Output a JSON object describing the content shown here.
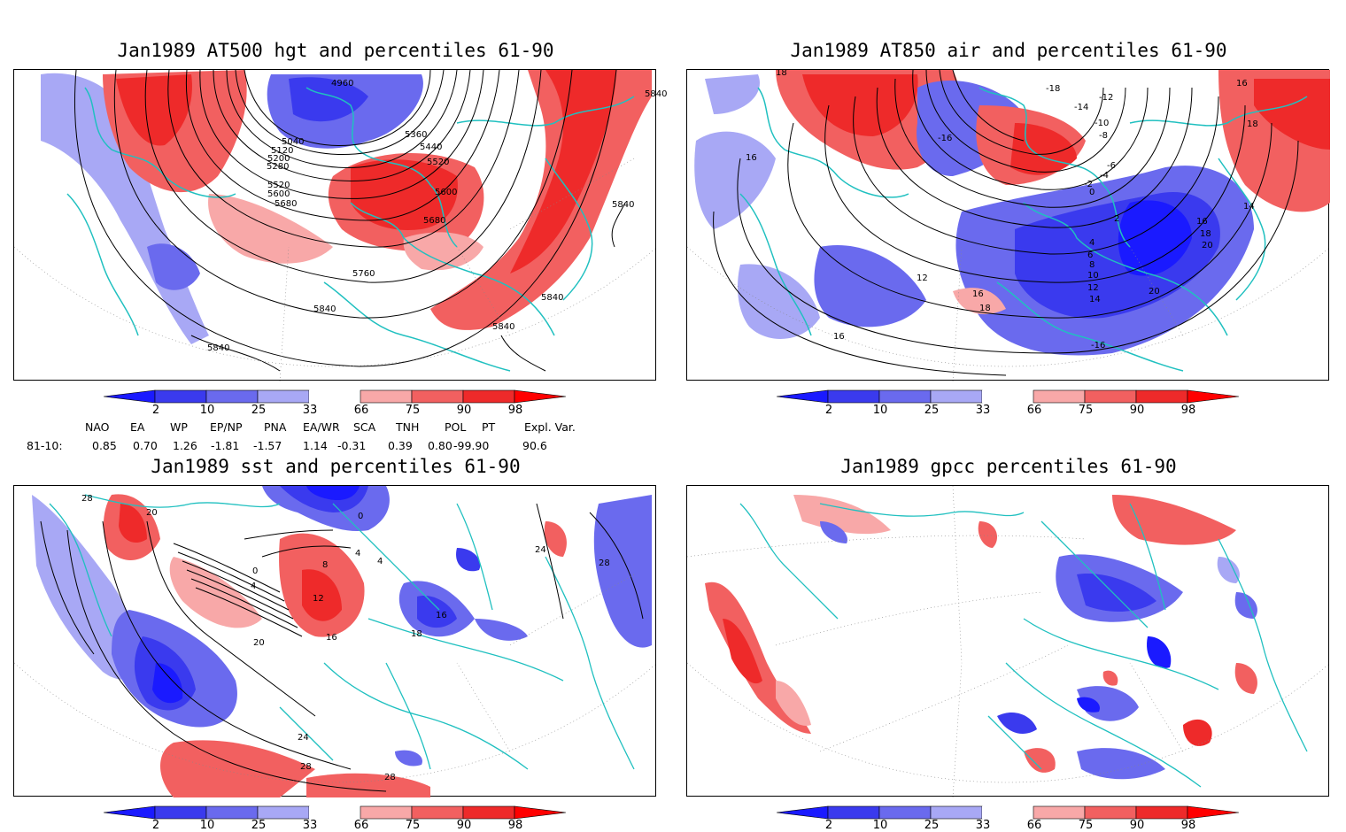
{
  "panels": [
    {
      "title": "Jan1989 AT500 hgt and percentiles 61-90",
      "contour_labels": [
        "4960",
        "5040",
        "5120",
        "5200",
        "5280",
        "5360",
        "5440",
        "5520",
        "5520",
        "5600",
        "5600",
        "5680",
        "5680",
        "5760",
        "5840",
        "5840",
        "5840",
        "5840",
        "5840",
        "5840"
      ]
    },
    {
      "title": "Jan1989 AT850 air and percentiles 61-90",
      "contour_labels": [
        "-18",
        "-14",
        "-12",
        "-10",
        "-8",
        "-6",
        "-4",
        "-2",
        "0",
        "2",
        "4",
        "6",
        "8",
        "10",
        "12",
        "14",
        "16",
        "18",
        "20",
        "16",
        "18",
        "20",
        "-16",
        "14",
        "12",
        "16",
        "18",
        "16",
        "-16",
        "16",
        "18"
      ]
    },
    {
      "title": "Jan1989 sst and percentiles 61-90",
      "contour_labels": [
        "28",
        "20",
        "0",
        "4",
        "0",
        "4",
        "8",
        "12",
        "16",
        "16",
        "18",
        "20",
        "24",
        "28",
        "28",
        "24",
        "28",
        "4"
      ]
    },
    {
      "title": "Jan1989 gpcc percentiles 61-90",
      "contour_labels": []
    }
  ],
  "colorbar": {
    "ticks": [
      "2",
      "10",
      "25",
      "33",
      "66",
      "75",
      "90",
      "98"
    ],
    "colors": [
      "#1a1aff",
      "#3a3aee",
      "#6a6aee",
      "#a8a8f5",
      "#ffffff",
      "#f8a8a8",
      "#f26060",
      "#ee2a2a",
      "#ff0000"
    ]
  },
  "teleconnections": {
    "headers": [
      "NAO",
      "EA",
      "WP",
      "EP/NP",
      "PNA",
      "EA/WR",
      "SCA",
      "TNH",
      "POL",
      "PT",
      "Expl. Var."
    ],
    "row_label": "81-10:",
    "values": [
      "0.85",
      "0.70",
      "1.26",
      "-1.81",
      "-1.57",
      "1.14",
      "-0.31",
      "0.39",
      "0.80",
      "-99.90",
      "90.6"
    ]
  },
  "colors": {
    "coast": "#20c0c0",
    "contour": "#000000"
  }
}
